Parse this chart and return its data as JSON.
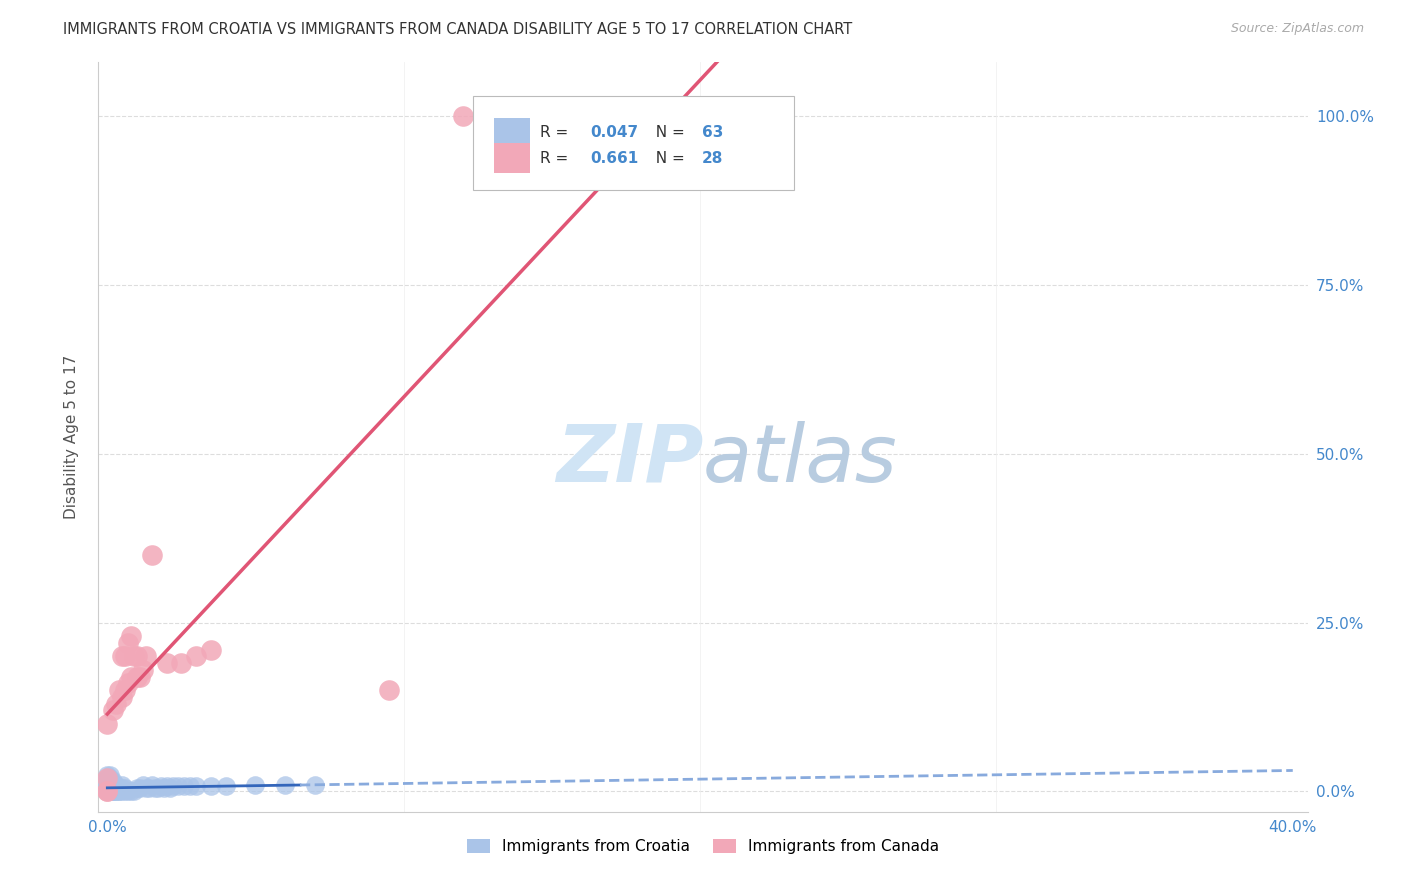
{
  "title": "IMMIGRANTS FROM CROATIA VS IMMIGRANTS FROM CANADA DISABILITY AGE 5 TO 17 CORRELATION CHART",
  "source": "Source: ZipAtlas.com",
  "ylabel_label": "Disability Age 5 to 17",
  "legend1_r": "0.047",
  "legend1_n": "63",
  "legend2_r": "0.661",
  "legend2_n": "28",
  "croatia_color": "#aac4e8",
  "canada_color": "#f2a8b8",
  "croatia_line_solid_color": "#3366bb",
  "croatia_line_dash_color": "#88aadd",
  "canada_line_color": "#e05575",
  "watermark_color": "#d0e4f5",
  "xlim": [
    -0.003,
    0.405
  ],
  "ylim": [
    -0.03,
    1.08
  ],
  "ytick_vals": [
    0.0,
    0.25,
    0.5,
    0.75,
    1.0
  ],
  "ytick_labels": [
    "0.0%",
    "25.0%",
    "50.0%",
    "75.0%",
    "100.0%"
  ],
  "xtick_left_label": "0.0%",
  "xtick_right_label": "40.0%",
  "legend_bottom_labels": [
    "Immigrants from Croatia",
    "Immigrants from Canada"
  ],
  "croatia_x": [
    0.0,
    0.0,
    0.0,
    0.0,
    0.0,
    0.0,
    0.0,
    0.0,
    0.0,
    0.0,
    0.0,
    0.001,
    0.001,
    0.001,
    0.001,
    0.001,
    0.001,
    0.001,
    0.001,
    0.001,
    0.002,
    0.002,
    0.002,
    0.002,
    0.002,
    0.002,
    0.003,
    0.003,
    0.003,
    0.003,
    0.004,
    0.004,
    0.004,
    0.005,
    0.005,
    0.005,
    0.006,
    0.006,
    0.007,
    0.008,
    0.009,
    0.01,
    0.011,
    0.012,
    0.013,
    0.014,
    0.015,
    0.016,
    0.017,
    0.018,
    0.019,
    0.02,
    0.021,
    0.022,
    0.024,
    0.026,
    0.028,
    0.03,
    0.035,
    0.04,
    0.05,
    0.06,
    0.07
  ],
  "croatia_y": [
    0.0,
    0.0,
    0.0,
    0.0,
    0.0,
    0.0,
    0.005,
    0.01,
    0.015,
    0.02,
    0.025,
    0.0,
    0.0,
    0.0,
    0.0,
    0.005,
    0.01,
    0.015,
    0.02,
    0.025,
    0.0,
    0.0,
    0.0,
    0.005,
    0.01,
    0.015,
    0.0,
    0.0,
    0.005,
    0.01,
    0.0,
    0.0,
    0.005,
    0.0,
    0.005,
    0.01,
    0.0,
    0.005,
    0.0,
    0.0,
    0.0,
    0.005,
    0.005,
    0.01,
    0.005,
    0.005,
    0.01,
    0.005,
    0.005,
    0.008,
    0.005,
    0.008,
    0.005,
    0.008,
    0.008,
    0.008,
    0.008,
    0.008,
    0.008,
    0.008,
    0.01,
    0.01,
    0.01
  ],
  "canada_x": [
    0.0,
    0.0,
    0.0,
    0.0,
    0.002,
    0.003,
    0.004,
    0.005,
    0.005,
    0.006,
    0.006,
    0.007,
    0.007,
    0.008,
    0.008,
    0.009,
    0.01,
    0.01,
    0.011,
    0.012,
    0.013,
    0.015,
    0.02,
    0.025,
    0.03,
    0.035,
    0.095,
    0.12
  ],
  "canada_y": [
    0.0,
    0.0,
    0.02,
    0.1,
    0.12,
    0.13,
    0.15,
    0.14,
    0.2,
    0.15,
    0.2,
    0.16,
    0.22,
    0.17,
    0.23,
    0.2,
    0.17,
    0.2,
    0.17,
    0.18,
    0.2,
    0.35,
    0.19,
    0.19,
    0.2,
    0.21,
    0.15,
    1.0
  ]
}
